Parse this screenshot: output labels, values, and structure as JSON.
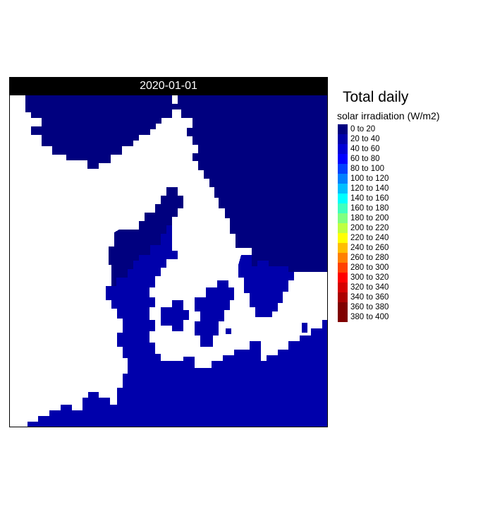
{
  "panel": {
    "date_label": "2020-01-01"
  },
  "legend": {
    "title": "Total daily",
    "subtitle": "solar irradiation (W/m2)",
    "items": [
      {
        "label": "0 to 20",
        "color": "#00007F"
      },
      {
        "label": "20 to 40",
        "color": "#0000AB"
      },
      {
        "label": "40 to 60",
        "color": "#0000D6"
      },
      {
        "label": "60 to 80",
        "color": "#0000FF"
      },
      {
        "label": "80 to 100",
        "color": "#0040FF"
      },
      {
        "label": "100 to 120",
        "color": "#0080FF"
      },
      {
        "label": "120 to 140",
        "color": "#00BFFF"
      },
      {
        "label": "140 to 160",
        "color": "#00FFFF"
      },
      {
        "label": "160 to 180",
        "color": "#40FFBF"
      },
      {
        "label": "180 to 200",
        "color": "#80FF80"
      },
      {
        "label": "200 to 220",
        "color": "#BFFF40"
      },
      {
        "label": "220 to 240",
        "color": "#FFFF00"
      },
      {
        "label": "240 to 260",
        "color": "#FFBF00"
      },
      {
        "label": "260 to 280",
        "color": "#FF8000"
      },
      {
        "label": "280 to 300",
        "color": "#FF4000"
      },
      {
        "label": "300 to 320",
        "color": "#FF0000"
      },
      {
        "label": "320 to 340",
        "color": "#D60000"
      },
      {
        "label": "340 to 360",
        "color": "#AB0000"
      },
      {
        "label": "360 to 380",
        "color": "#800000"
      },
      {
        "label": "380 to 400",
        "color": "#7F0000"
      }
    ]
  },
  "map": {
    "region_colors": {
      "class_0_to_20": "#00007F",
      "class_20_to_40": "#0000AB",
      "no_data": "#FFFFFF"
    }
  }
}
